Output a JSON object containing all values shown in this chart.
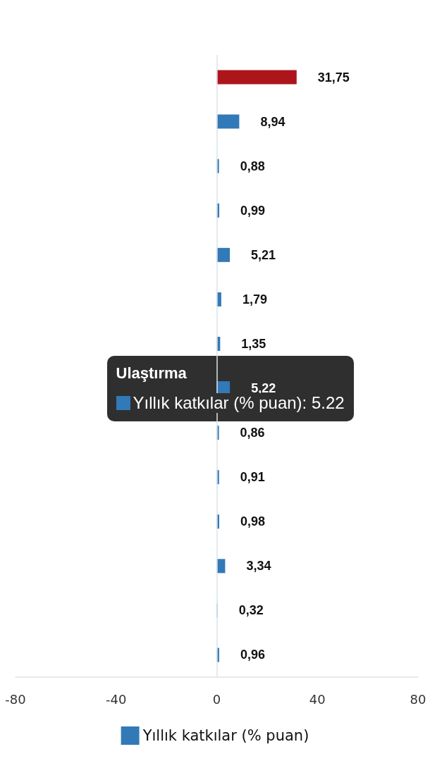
{
  "chart_data": {
    "type": "bar",
    "orientation": "horizontal",
    "categories": [
      null,
      null,
      null,
      null,
      null,
      null,
      null,
      null,
      null,
      null,
      null,
      null,
      null,
      null
    ],
    "series": [
      {
        "name": "Yıllık katkılar (% puan)",
        "color": "#3279b7",
        "colors": [
          "#ad151d",
          "#3279b7",
          "#3279b7",
          "#3279b7",
          "#3279b7",
          "#3279b7",
          "#3279b7",
          "#3279b7",
          "#3279b7",
          "#3279b7",
          "#3279b7",
          "#3279b7",
          "#3279b7",
          "#3279b7"
        ],
        "values": [
          31.75,
          8.94,
          0.88,
          0.99,
          5.21,
          1.79,
          1.35,
          5.22,
          0.86,
          0.91,
          0.98,
          3.34,
          0.32,
          0.96
        ],
        "value_labels": [
          "31,75",
          "8,94",
          "0,88",
          "0,99",
          "5,21",
          "1,79",
          "1,35",
          "5,22",
          "0,86",
          "0,91",
          "0,98",
          "3,34",
          "0,32",
          "0,96"
        ]
      }
    ],
    "xlim": [
      -80,
      80
    ],
    "xticks": [
      -80,
      -40,
      0,
      40,
      80
    ],
    "grid": false,
    "ref_lines": [
      {
        "axis": "x",
        "value": 0,
        "color": "#dde3ea"
      }
    ],
    "legend": "bottom",
    "annotations": [
      "Ulaştırma",
      "Yıllık katkılar (% puan): 5.22"
    ]
  }
}
